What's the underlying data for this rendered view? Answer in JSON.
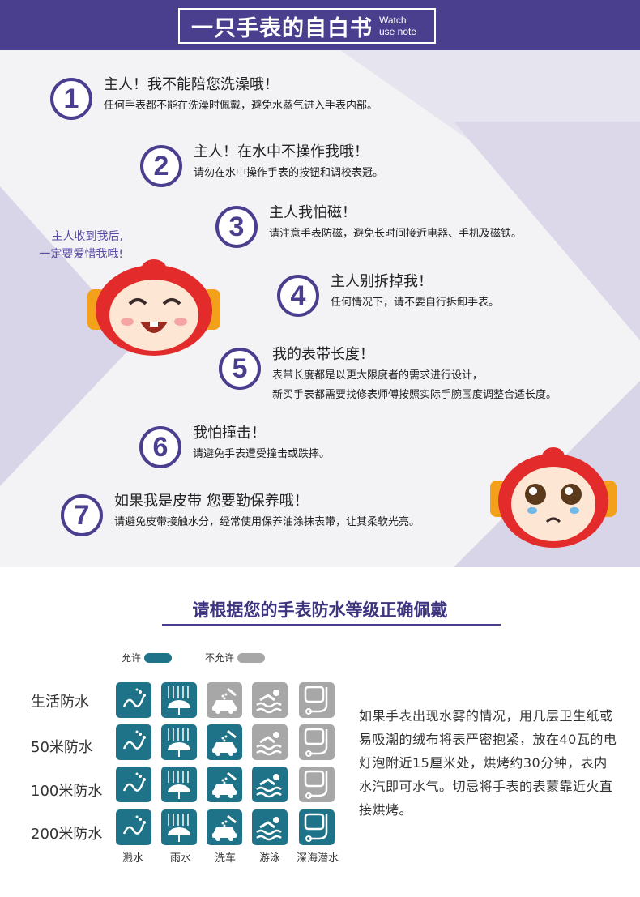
{
  "header": {
    "title": "一只手表的自白书",
    "subtitle_1": "Watch",
    "subtitle_2": "use note"
  },
  "side_note": {
    "line_1": "主人收到我后,",
    "line_2": "一定要爱惜我哦!"
  },
  "items": [
    {
      "number": "1",
      "title": "主人！我不能陪您洗澡哦！",
      "desc_1": "任何手表都不能在洗澡时佩戴，避免水蒸气进入手表内部。",
      "desc_2": ""
    },
    {
      "number": "2",
      "title": "主人！在水中不操作我哦！",
      "desc_1": "请勿在水中操作手表的按钮和调校表冠。",
      "desc_2": ""
    },
    {
      "number": "3",
      "title": "主人我怕磁！",
      "desc_1": "请注意手表防磁，避免长时间接近电器、手机及磁铁。",
      "desc_2": ""
    },
    {
      "number": "4",
      "title": "主人别拆掉我！",
      "desc_1": "任何情况下，请不要自行拆卸手表。",
      "desc_2": ""
    },
    {
      "number": "5",
      "title": "我的表带长度！",
      "desc_1": "表带长度都是以更大限度者的需求进行设计，",
      "desc_2": "新买手表都需要找修表师傅按照实际手腕围度调整合适长度。"
    },
    {
      "number": "6",
      "title": "我怕撞击！",
      "desc_1": "请避免手表遭受撞击或跌摔。",
      "desc_2": ""
    },
    {
      "number": "7",
      "title": "如果我是皮带 您要勤保养哦！",
      "desc_1": "请避免皮带接触水分，经常使用保养油涂抹表带，让其柔软光亮。",
      "desc_2": ""
    }
  ],
  "waterproof": {
    "title": "请根据您的手表防水等级正确佩戴",
    "legend_allow": "允许",
    "legend_deny": "不允许",
    "allow_color": "#1f7388",
    "deny_color": "#a7a7a7",
    "columns": [
      "溅水",
      "雨水",
      "洗车",
      "游泳",
      "深海潜水"
    ],
    "column_icons": [
      "splash-icon",
      "rain-icon",
      "car-wash-icon",
      "swim-icon",
      "diving-icon"
    ],
    "rows": [
      {
        "label": "生活防水",
        "allowed": [
          true,
          true,
          false,
          false,
          false
        ]
      },
      {
        "label": "50米防水",
        "allowed": [
          true,
          true,
          true,
          false,
          false
        ]
      },
      {
        "label": "100米防水",
        "allowed": [
          true,
          true,
          true,
          true,
          false
        ]
      },
      {
        "label": "200米防水",
        "allowed": [
          true,
          true,
          true,
          true,
          true
        ]
      }
    ],
    "note": "如果手表出现水雾的情况，用几层卫生纸或易吸潮的绒布将表严密抱紧，放在40瓦的电灯泡附近15厘米处，烘烤约30分钟，表内水汽即可水气。切忌将手表的表蒙靠近火直接烘烤。"
  }
}
